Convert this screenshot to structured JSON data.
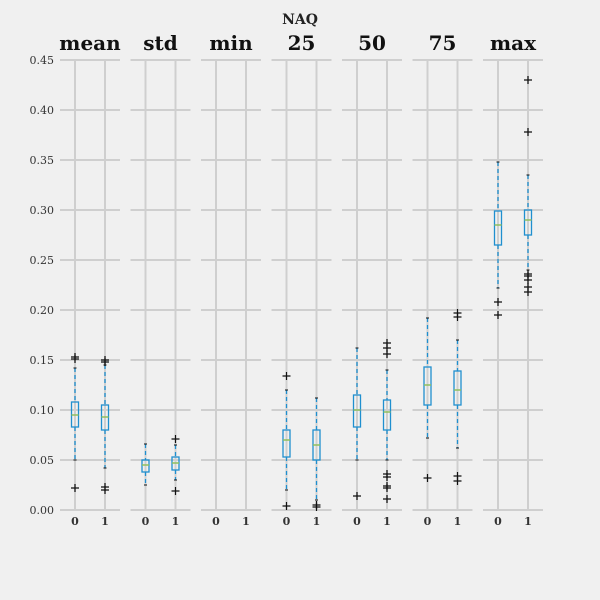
{
  "chart_data": {
    "type": "boxplot",
    "title": "NAQ",
    "ylim": [
      0,
      0.45
    ],
    "yticks": [
      "0.00",
      "0.05",
      "0.10",
      "0.15",
      "0.20",
      "0.25",
      "0.30",
      "0.35",
      "0.40",
      "0.45"
    ],
    "grid": true,
    "colors": {
      "box": "#1f8fcf",
      "median": "#8fbf5f",
      "flier": "#111111",
      "grid": "#cfcfcf",
      "background": "#f0f0f0"
    },
    "panels": [
      {
        "name": "mean",
        "categories": [
          "0",
          "1"
        ],
        "boxes": [
          {
            "whislo": 0.05,
            "q1": 0.083,
            "med": 0.095,
            "q3": 0.108,
            "whishi": 0.142,
            "fliers": [
              0.022,
              0.151,
              0.153
            ]
          },
          {
            "whislo": 0.042,
            "q1": 0.08,
            "med": 0.093,
            "q3": 0.105,
            "whishi": 0.145,
            "fliers": [
              0.02,
              0.023,
              0.148,
              0.15
            ]
          }
        ]
      },
      {
        "name": "std",
        "categories": [
          "0",
          "1"
        ],
        "boxes": [
          {
            "whislo": 0.025,
            "q1": 0.038,
            "med": 0.045,
            "q3": 0.05,
            "whishi": 0.066,
            "fliers": []
          },
          {
            "whislo": 0.03,
            "q1": 0.04,
            "med": 0.047,
            "q3": 0.053,
            "whishi": 0.065,
            "fliers": [
              0.019,
              0.071
            ]
          }
        ]
      },
      {
        "name": "min",
        "categories": [
          "0",
          "1"
        ],
        "boxes": [
          null,
          null
        ]
      },
      {
        "name": "25",
        "categories": [
          "0",
          "1"
        ],
        "boxes": [
          {
            "whislo": 0.02,
            "q1": 0.053,
            "med": 0.07,
            "q3": 0.08,
            "whishi": 0.12,
            "fliers": [
              0.004,
              0.134
            ]
          },
          {
            "whislo": 0.01,
            "q1": 0.05,
            "med": 0.065,
            "q3": 0.08,
            "whishi": 0.112,
            "fliers": [
              0.003,
              0.005
            ]
          }
        ]
      },
      {
        "name": "50",
        "categories": [
          "0",
          "1"
        ],
        "boxes": [
          {
            "whislo": 0.05,
            "q1": 0.083,
            "med": 0.1,
            "q3": 0.115,
            "whishi": 0.162,
            "fliers": [
              0.014
            ]
          },
          {
            "whislo": 0.05,
            "q1": 0.08,
            "med": 0.098,
            "q3": 0.11,
            "whishi": 0.14,
            "fliers": [
              0.011,
              0.022,
              0.024,
              0.033,
              0.036,
              0.156,
              0.162,
              0.167
            ]
          }
        ]
      },
      {
        "name": "75",
        "categories": [
          "0",
          "1"
        ],
        "boxes": [
          {
            "whislo": 0.072,
            "q1": 0.105,
            "med": 0.125,
            "q3": 0.143,
            "whishi": 0.192,
            "fliers": [
              0.032
            ]
          },
          {
            "whislo": 0.062,
            "q1": 0.105,
            "med": 0.12,
            "q3": 0.139,
            "whishi": 0.17,
            "fliers": [
              0.029,
              0.034,
              0.193,
              0.197
            ]
          }
        ]
      },
      {
        "name": "max",
        "categories": [
          "0",
          "1"
        ],
        "boxes": [
          {
            "whislo": 0.222,
            "q1": 0.265,
            "med": 0.285,
            "q3": 0.299,
            "whishi": 0.348,
            "fliers": [
              0.195,
              0.208
            ]
          },
          {
            "whislo": 0.24,
            "q1": 0.275,
            "med": 0.29,
            "q3": 0.3,
            "whishi": 0.335,
            "fliers": [
              0.218,
              0.223,
              0.23,
              0.234,
              0.236,
              0.378,
              0.43
            ]
          }
        ]
      }
    ]
  }
}
